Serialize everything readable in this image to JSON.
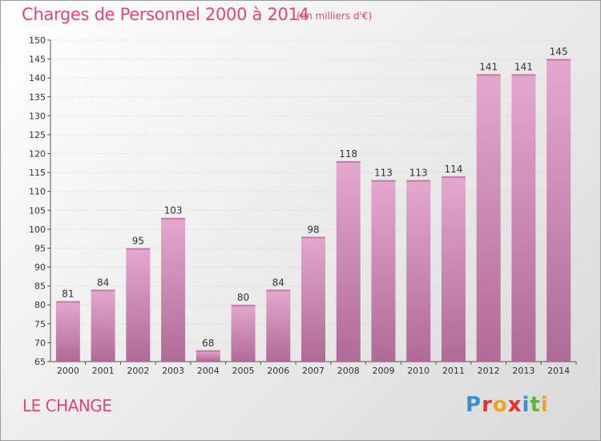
{
  "colors": {
    "accent": "#e0467a",
    "bar_top": "#e4a8ce",
    "bar_bottom": "#b06a96"
  },
  "header": {
    "title": "Charges de Personnel 2000 à 2014",
    "subtitle": "(en milliers d'€)"
  },
  "commune": "LE CHANGE",
  "logo": {
    "text": "Proxiti",
    "letters": [
      {
        "char": "P",
        "color": "#3a8fd6"
      },
      {
        "char": "r",
        "color": "#e8302a"
      },
      {
        "char": "o",
        "color": "#f3a21b"
      },
      {
        "char": "x",
        "color": "#e8302a"
      },
      {
        "char": "i",
        "color": "#3a8fd6"
      },
      {
        "char": "t",
        "color": "#5db53a"
      },
      {
        "char": "i",
        "color": "#f3a21b"
      }
    ]
  },
  "chart_data": {
    "type": "bar",
    "title": "Charges de Personnel 2000 à 2014",
    "subtitle": "(en milliers d'€)",
    "categories": [
      "2000",
      "2001",
      "2002",
      "2003",
      "2004",
      "2005",
      "2006",
      "2007",
      "2008",
      "2009",
      "2010",
      "2011",
      "2012",
      "2013",
      "2014"
    ],
    "values": [
      81,
      84,
      95,
      103,
      68,
      80,
      84,
      98,
      118,
      113,
      113,
      114,
      141,
      141,
      145
    ],
    "ylim": [
      65,
      150
    ],
    "yticks": [
      65,
      70,
      75,
      80,
      85,
      90,
      95,
      100,
      105,
      110,
      115,
      120,
      125,
      130,
      135,
      140,
      145,
      150
    ],
    "grid": true,
    "xlabel": "",
    "ylabel": ""
  }
}
